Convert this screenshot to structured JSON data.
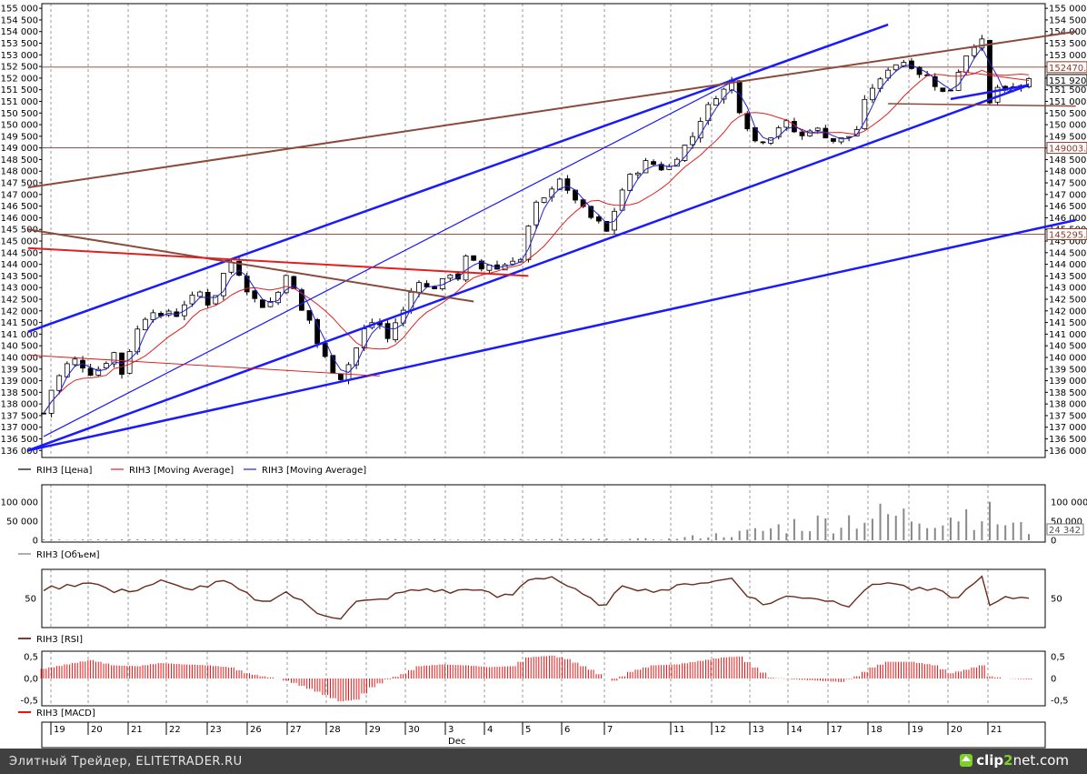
{
  "window": {
    "footer_text": "Элитный Трейдер, ELITETRADER.RU",
    "logo": {
      "part1": "clip",
      "part2": "2",
      "part3": "net.com"
    }
  },
  "chart_data": [
    {
      "type": "line",
      "title": "",
      "subtitle": "price",
      "x_ticks": [
        "19",
        "20",
        "21",
        "22",
        "23",
        "26",
        "27",
        "28",
        "29",
        "30",
        "3",
        "4",
        "5",
        "6",
        "7",
        "11",
        "12",
        "13",
        "14",
        "17",
        "18",
        "19",
        "20",
        "21"
      ],
      "x_sublabel": "Dec",
      "ylim": [
        135700,
        155200
      ],
      "y_ticks": [
        136000,
        136500,
        137000,
        137500,
        138000,
        138500,
        139000,
        139500,
        140000,
        140500,
        141000,
        141500,
        142000,
        142500,
        143000,
        143500,
        144000,
        144500,
        145000,
        145500,
        146000,
        146500,
        147000,
        147500,
        148000,
        148500,
        149000,
        149500,
        150000,
        150500,
        151000,
        151500,
        152000,
        152500,
        153000,
        153500,
        154000,
        154500,
        155000
      ],
      "y_tick_labels": [
        "136 000",
        "136 500",
        "137 000",
        "137 500",
        "138 000",
        "138 500",
        "139 000",
        "139 500",
        "140 000",
        "140 500",
        "141 000",
        "141 500",
        "142 000",
        "142 500",
        "143 000",
        "143 500",
        "144 000",
        "144 500",
        "145 000",
        "145 500",
        "146 000",
        "146 500",
        "147 000",
        "147 500",
        "148 000",
        "148 500",
        "149 000",
        "149 500",
        "150 000",
        "150 500",
        "151 000",
        "151 500",
        "152 000",
        "152 500",
        "153 000",
        "153 500",
        "154 000",
        "154 500",
        "155 000"
      ],
      "grid": true,
      "legend_position": "bottom-left",
      "legend": [
        "RIH3 [Цена]",
        "RIH3 [Moving Average]",
        "RIH3 [Moving Average]"
      ],
      "series_colors": {
        "price": "#000000",
        "ma_slow": "#e02020",
        "ma_fast": "#2020d0"
      },
      "price_markers": [
        {
          "label": "152470.0",
          "value": 152470,
          "color": "#8b3a2a"
        },
        {
          "label": "151 920",
          "value": 151920,
          "color": "#000000"
        },
        {
          "label": "149003.1",
          "value": 149003,
          "color": "#8b3a2a"
        },
        {
          "label": "145295.0",
          "value": 145295,
          "color": "#8b3a2a"
        }
      ],
      "price_path": [
        [
          0,
          137600
        ],
        [
          1,
          138600
        ],
        [
          2,
          139200
        ],
        [
          3,
          139700
        ],
        [
          4,
          139900
        ],
        [
          5,
          139600
        ],
        [
          6,
          139300
        ],
        [
          7,
          139500
        ],
        [
          8,
          139800
        ],
        [
          9,
          140200
        ],
        [
          10,
          139300
        ],
        [
          11,
          140300
        ],
        [
          12,
          141200
        ],
        [
          13,
          141700
        ],
        [
          14,
          142000
        ],
        [
          15,
          141700
        ],
        [
          16,
          142000
        ],
        [
          17,
          141800
        ],
        [
          18,
          142300
        ],
        [
          19,
          142600
        ],
        [
          20,
          142800
        ],
        [
          21,
          142300
        ],
        [
          22,
          142700
        ],
        [
          23,
          143600
        ],
        [
          24,
          144100
        ],
        [
          25,
          143600
        ],
        [
          26,
          142900
        ],
        [
          27,
          142500
        ],
        [
          28,
          142200
        ],
        [
          29,
          142400
        ],
        [
          30,
          142800
        ],
        [
          31,
          143600
        ],
        [
          32,
          142900
        ],
        [
          33,
          142000
        ],
        [
          34,
          141600
        ],
        [
          35,
          140600
        ],
        [
          36,
          140000
        ],
        [
          37,
          139400
        ],
        [
          38,
          139100
        ],
        [
          39,
          139700
        ],
        [
          40,
          140400
        ],
        [
          41,
          141200
        ],
        [
          42,
          141500
        ],
        [
          43,
          141400
        ],
        [
          44,
          140800
        ],
        [
          45,
          141500
        ],
        [
          46,
          142000
        ],
        [
          47,
          142800
        ],
        [
          48,
          143300
        ],
        [
          49,
          143000
        ],
        [
          50,
          143000
        ],
        [
          51,
          143300
        ],
        [
          52,
          143600
        ],
        [
          53,
          143400
        ],
        [
          54,
          144300
        ],
        [
          55,
          144100
        ],
        [
          56,
          143800
        ],
        [
          57,
          144000
        ],
        [
          58,
          143800
        ],
        [
          59,
          144000
        ],
        [
          60,
          144200
        ],
        [
          61,
          144200
        ],
        [
          62,
          145600
        ],
        [
          63,
          146600
        ],
        [
          64,
          146800
        ],
        [
          65,
          147300
        ],
        [
          66,
          147700
        ],
        [
          67,
          147100
        ],
        [
          68,
          146800
        ],
        [
          69,
          146400
        ],
        [
          70,
          146000
        ],
        [
          71,
          145800
        ],
        [
          72,
          145400
        ],
        [
          73,
          146300
        ],
        [
          74,
          147200
        ],
        [
          75,
          147800
        ],
        [
          76,
          148000
        ],
        [
          77,
          148400
        ],
        [
          78,
          148300
        ],
        [
          79,
          148100
        ],
        [
          80,
          148200
        ],
        [
          81,
          148600
        ],
        [
          82,
          149100
        ],
        [
          83,
          149500
        ],
        [
          84,
          150200
        ],
        [
          85,
          150800
        ],
        [
          86,
          151200
        ],
        [
          87,
          151500
        ],
        [
          88,
          151900
        ],
        [
          89,
          150600
        ],
        [
          90,
          149900
        ],
        [
          91,
          149300
        ],
        [
          92,
          149300
        ],
        [
          93,
          149500
        ],
        [
          94,
          149900
        ],
        [
          95,
          150100
        ],
        [
          96,
          149700
        ],
        [
          97,
          149500
        ],
        [
          98,
          149800
        ],
        [
          99,
          149800
        ],
        [
          100,
          149500
        ],
        [
          101,
          149300
        ],
        [
          102,
          149400
        ],
        [
          103,
          149500
        ],
        [
          104,
          149800
        ],
        [
          105,
          151000
        ],
        [
          106,
          151600
        ],
        [
          107,
          151900
        ],
        [
          108,
          152400
        ],
        [
          109,
          152600
        ],
        [
          110,
          152700
        ],
        [
          111,
          152500
        ],
        [
          112,
          152200
        ],
        [
          113,
          152100
        ],
        [
          114,
          151700
        ],
        [
          115,
          151400
        ],
        [
          116,
          151500
        ],
        [
          117,
          152300
        ],
        [
          118,
          153000
        ],
        [
          119,
          153400
        ],
        [
          120,
          153600
        ],
        [
          121,
          150900
        ],
        [
          122,
          151600
        ],
        [
          123,
          151400
        ],
        [
          124,
          151600
        ],
        [
          125,
          151700
        ],
        [
          126,
          151900
        ]
      ],
      "drawn_trend_lines": [
        {
          "color": "#1a1aff",
          "width": 2.5,
          "from": [
            -2,
            141100
          ],
          "to": [
            108,
            154300
          ]
        },
        {
          "color": "#1a1aff",
          "width": 2.5,
          "from": [
            -2,
            136000
          ],
          "to": [
            126,
            151700
          ]
        },
        {
          "color": "#1a1aff",
          "width": 2.5,
          "from": [
            -2,
            136000
          ],
          "to": [
            132,
            145900
          ]
        },
        {
          "color": "#1a1aff",
          "width": 1.2,
          "from": [
            0,
            136600
          ],
          "to": [
            89,
            152000
          ]
        },
        {
          "color": "#1a1aff",
          "width": 2.5,
          "from": [
            116,
            151100
          ],
          "to": [
            126,
            151700
          ]
        },
        {
          "color": "#8b4a3a",
          "width": 2,
          "from": [
            -2,
            147300
          ],
          "to": [
            132,
            154000
          ]
        },
        {
          "color": "#8b4a3a",
          "width": 2,
          "from": [
            -2,
            145500
          ],
          "to": [
            55,
            142400
          ]
        },
        {
          "color": "#8b4a3a",
          "width": 1.5,
          "from": [
            108,
            150900
          ],
          "to": [
            132,
            150800
          ]
        },
        {
          "color": "#e02020",
          "width": 2,
          "from": [
            -2,
            144700
          ],
          "to": [
            62,
            143500
          ]
        },
        {
          "color": "#e02020",
          "width": 1,
          "from": [
            -2,
            140100
          ],
          "to": [
            43,
            139200
          ]
        },
        {
          "color": "#e02020",
          "width": 1,
          "from": [
            117,
            152300
          ],
          "to": [
            126,
            151900
          ]
        }
      ]
    },
    {
      "type": "bar",
      "subtitle": "volume",
      "ylim": [
        0,
        140000
      ],
      "y_ticks": [
        0,
        50000,
        100000
      ],
      "y_tick_labels_left": [
        "0",
        "50 000",
        "100 000"
      ],
      "y_tick_labels_right": [
        "0",
        "50 000",
        "100 000"
      ],
      "current_label": "24 342",
      "legend": [
        "RIH3 [Объем]"
      ],
      "volume_profile": [
        [
          0,
          2000
        ],
        [
          60,
          2500
        ],
        [
          80,
          4000
        ],
        [
          85,
          14000
        ],
        [
          89,
          20000
        ],
        [
          92,
          30000
        ],
        [
          96,
          50000
        ],
        [
          100,
          55000
        ],
        [
          104,
          70000
        ],
        [
          108,
          75000
        ],
        [
          112,
          70000
        ],
        [
          116,
          80000
        ],
        [
          120,
          90000
        ],
        [
          122,
          60000
        ],
        [
          126,
          30000
        ]
      ]
    },
    {
      "type": "line",
      "subtitle": "rsi",
      "y_ticks": [
        50
      ],
      "y_tick_labels_left": [
        "50"
      ],
      "y_tick_labels_right": [
        "50"
      ],
      "legend": [
        "RIH3 [RSI]"
      ],
      "color": "#6b2b1b",
      "rsi_path": [
        [
          0,
          62
        ],
        [
          3,
          66
        ],
        [
          6,
          72
        ],
        [
          9,
          58
        ],
        [
          12,
          62
        ],
        [
          15,
          72
        ],
        [
          18,
          62
        ],
        [
          21,
          66
        ],
        [
          23,
          72
        ],
        [
          26,
          55
        ],
        [
          28,
          45
        ],
        [
          31,
          58
        ],
        [
          33,
          46
        ],
        [
          35,
          32
        ],
        [
          38,
          25
        ],
        [
          40,
          45
        ],
        [
          43,
          48
        ],
        [
          46,
          58
        ],
        [
          49,
          62
        ],
        [
          52,
          58
        ],
        [
          55,
          63
        ],
        [
          58,
          52
        ],
        [
          60,
          55
        ],
        [
          62,
          75
        ],
        [
          65,
          78
        ],
        [
          67,
          66
        ],
        [
          70,
          48
        ],
        [
          72,
          40
        ],
        [
          74,
          68
        ],
        [
          77,
          60
        ],
        [
          80,
          62
        ],
        [
          83,
          70
        ],
        [
          86,
          72
        ],
        [
          88,
          76
        ],
        [
          90,
          55
        ],
        [
          92,
          42
        ],
        [
          95,
          52
        ],
        [
          98,
          52
        ],
        [
          101,
          46
        ],
        [
          103,
          42
        ],
        [
          105,
          62
        ],
        [
          108,
          72
        ],
        [
          111,
          62
        ],
        [
          114,
          60
        ],
        [
          117,
          50
        ],
        [
          119,
          72
        ],
        [
          120,
          76
        ],
        [
          121,
          40
        ],
        [
          123,
          50
        ],
        [
          126,
          52
        ]
      ]
    },
    {
      "type": "bar",
      "subtitle": "macd",
      "ylim": [
        -0.6,
        0.6
      ],
      "y_ticks": [
        0.5,
        0,
        -0.5
      ],
      "y_tick_labels_left": [
        "0,5",
        "0,0",
        "-0,5"
      ],
      "y_tick_labels_right": [
        "0,5",
        "0",
        "-0,5"
      ],
      "legend": [
        "RIH3 [MACD]"
      ],
      "color": "#ee1111",
      "macd_path": [
        [
          0,
          0.22
        ],
        [
          3,
          0.32
        ],
        [
          6,
          0.42
        ],
        [
          9,
          0.3
        ],
        [
          12,
          0.28
        ],
        [
          15,
          0.35
        ],
        [
          18,
          0.32
        ],
        [
          21,
          0.3
        ],
        [
          24,
          0.25
        ],
        [
          26,
          0.12
        ],
        [
          28,
          0.05
        ],
        [
          30,
          0.0
        ],
        [
          32,
          -0.1
        ],
        [
          35,
          -0.3
        ],
        [
          38,
          -0.52
        ],
        [
          40,
          -0.48
        ],
        [
          42,
          -0.2
        ],
        [
          44,
          -0.02
        ],
        [
          46,
          0.1
        ],
        [
          48,
          0.28
        ],
        [
          51,
          0.32
        ],
        [
          54,
          0.3
        ],
        [
          57,
          0.26
        ],
        [
          60,
          0.28
        ],
        [
          62,
          0.48
        ],
        [
          65,
          0.52
        ],
        [
          67,
          0.44
        ],
        [
          70,
          0.2
        ],
        [
          72,
          0.0
        ],
        [
          73,
          -0.05
        ],
        [
          75,
          0.15
        ],
        [
          78,
          0.3
        ],
        [
          81,
          0.32
        ],
        [
          84,
          0.4
        ],
        [
          87,
          0.48
        ],
        [
          89,
          0.5
        ],
        [
          91,
          0.25
        ],
        [
          93,
          0.02
        ],
        [
          96,
          -0.02
        ],
        [
          99,
          -0.05
        ],
        [
          102,
          -0.08
        ],
        [
          104,
          0.05
        ],
        [
          106,
          0.25
        ],
        [
          108,
          0.38
        ],
        [
          111,
          0.38
        ],
        [
          114,
          0.3
        ],
        [
          116,
          0.12
        ],
        [
          118,
          0.2
        ],
        [
          120,
          0.3
        ],
        [
          121,
          0.05
        ],
        [
          123,
          0.0
        ],
        [
          126,
          -0.02
        ]
      ]
    }
  ]
}
